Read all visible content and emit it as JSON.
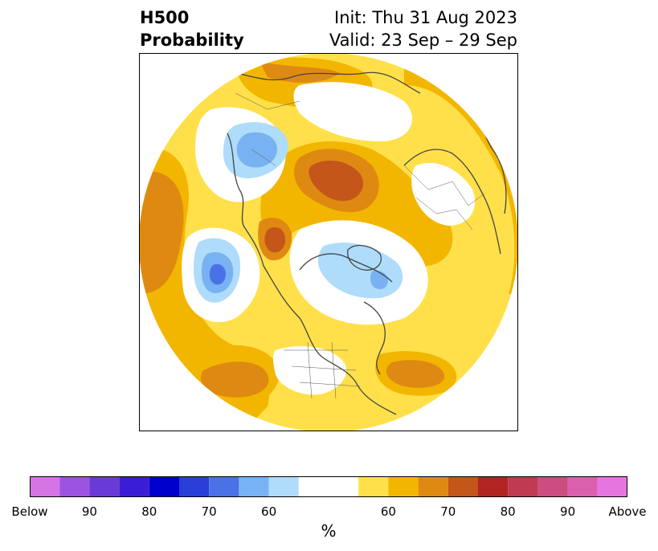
{
  "title": {
    "left_line1": "H500",
    "left_line2": "Probability",
    "right_line1": "Init: Thu 31 Aug 2023",
    "right_line2": "Valid: 23 Sep – 29 Sep"
  },
  "colorbar": {
    "unit": "%",
    "labels": [
      "Below",
      "90",
      "80",
      "70",
      "60",
      "60",
      "70",
      "80",
      "90",
      "Above"
    ],
    "colors": [
      "#d674e6",
      "#9c54e0",
      "#6a3ad8",
      "#3a1ed6",
      "#0000cc",
      "#2a3ed8",
      "#4a72e6",
      "#78b2f2",
      "#aedcfa",
      "#ffffff",
      "#ffe04a",
      "#f2b600",
      "#de8a12",
      "#c4561a",
      "#b22424",
      "#c03a52",
      "#cc4e80",
      "#da5fac",
      "#e676df"
    ]
  },
  "map": {
    "projection": "north-polar-stereographic",
    "ocean_color": "#ffffff",
    "border_color": "#444444"
  }
}
